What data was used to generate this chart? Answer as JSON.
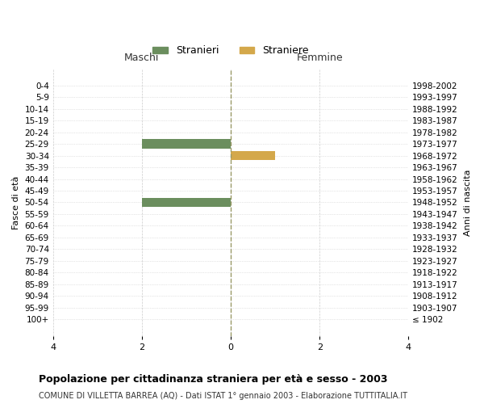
{
  "age_groups": [
    "100+",
    "95-99",
    "90-94",
    "85-89",
    "80-84",
    "75-79",
    "70-74",
    "65-69",
    "60-64",
    "55-59",
    "50-54",
    "45-49",
    "40-44",
    "35-39",
    "30-34",
    "25-29",
    "20-24",
    "15-19",
    "10-14",
    "5-9",
    "0-4"
  ],
  "birth_years": [
    "≤ 1902",
    "1903-1907",
    "1908-1912",
    "1913-1917",
    "1918-1922",
    "1923-1927",
    "1928-1932",
    "1933-1937",
    "1938-1942",
    "1943-1947",
    "1948-1952",
    "1953-1957",
    "1958-1962",
    "1963-1967",
    "1968-1972",
    "1973-1977",
    "1978-1982",
    "1983-1987",
    "1988-1992",
    "1993-1997",
    "1998-2002"
  ],
  "males": [
    0,
    0,
    0,
    0,
    0,
    0,
    0,
    0,
    0,
    0,
    2,
    0,
    0,
    0,
    0,
    2,
    0,
    0,
    0,
    0,
    0
  ],
  "females": [
    0,
    0,
    0,
    0,
    0,
    0,
    0,
    0,
    0,
    0,
    0,
    0,
    0,
    0,
    1,
    0,
    0,
    0,
    0,
    0,
    0
  ],
  "male_color": "#6b8e5e",
  "female_color": "#d4a84b",
  "male_label": "Stranieri",
  "female_label": "Straniere",
  "xlim": 4,
  "title": "Popolazione per cittadinanza straniera per età e sesso - 2003",
  "subtitle": "COMUNE DI VILLETTA BARREA (AQ) - Dati ISTAT 1° gennaio 2003 - Elaborazione TUTTITALIA.IT",
  "left_header": "Maschi",
  "right_header": "Femmine",
  "ylabel": "Fasce di età",
  "right_ylabel": "Anni di nascita",
  "bg_color": "#ffffff",
  "grid_color": "#cccccc",
  "center_line_color": "#999966",
  "bar_height": 0.8
}
